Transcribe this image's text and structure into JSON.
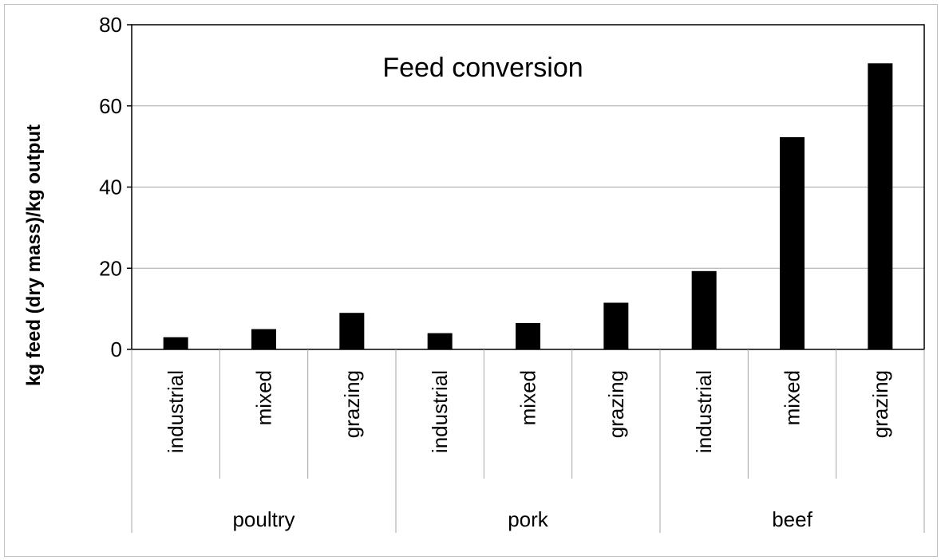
{
  "chart_data": {
    "type": "bar",
    "title": "Feed conversion",
    "ylabel": "kg feed (dry mass)/kg output",
    "xlabel": "",
    "ylim": [
      0,
      80
    ],
    "yticks": [
      "0",
      "20",
      "40",
      "60",
      "80"
    ],
    "grid": true,
    "legend": "none",
    "groups": [
      {
        "name": "poultry",
        "categories": [
          "industrial",
          "mixed",
          "grazing"
        ]
      },
      {
        "name": "pork",
        "categories": [
          "industrial",
          "mixed",
          "grazing"
        ]
      },
      {
        "name": "beef",
        "categories": [
          "industrial",
          "mixed",
          "grazing"
        ]
      }
    ],
    "categories": [
      "industrial",
      "mixed",
      "grazing",
      "industrial",
      "mixed",
      "grazing",
      "industrial",
      "mixed",
      "grazing"
    ],
    "values": [
      3,
      5,
      9,
      4,
      6.5,
      11.5,
      19.3,
      52.3,
      70.5
    ],
    "bar_color": "#000000"
  }
}
